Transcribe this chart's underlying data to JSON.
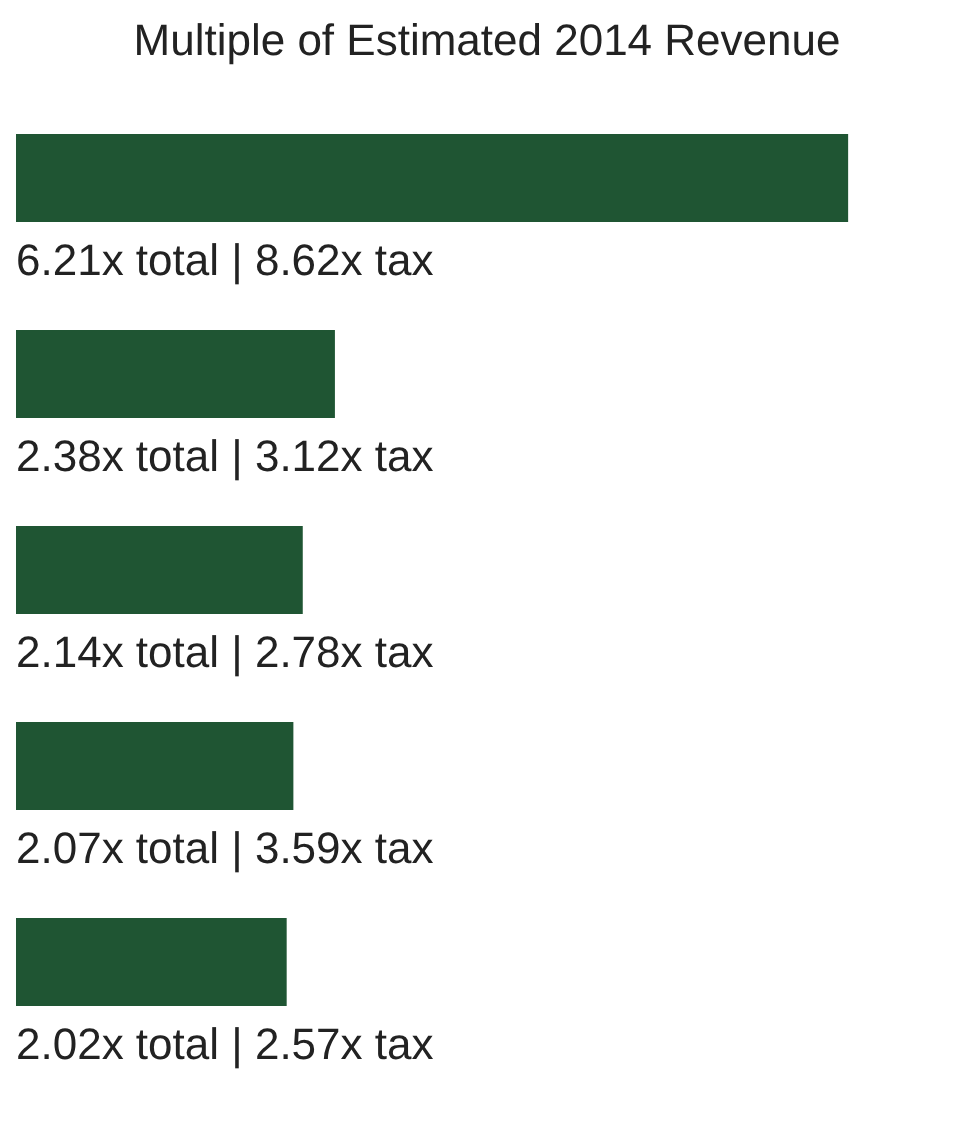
{
  "chart_data": {
    "type": "bar",
    "orientation": "horizontal",
    "title": "Multiple of Estimated 2014 Revenue",
    "categories": [
      null,
      null,
      null,
      null,
      null
    ],
    "values": [
      6.21,
      2.38,
      2.14,
      2.07,
      2.02
    ],
    "value_labels": [
      "6.21x total | 8.62x tax",
      "2.38x total | 3.12x tax",
      "2.14x total | 2.78x tax",
      "2.07x total | 3.59x tax",
      "2.02x total | 2.57x tax"
    ],
    "color": "#1f5533"
  }
}
